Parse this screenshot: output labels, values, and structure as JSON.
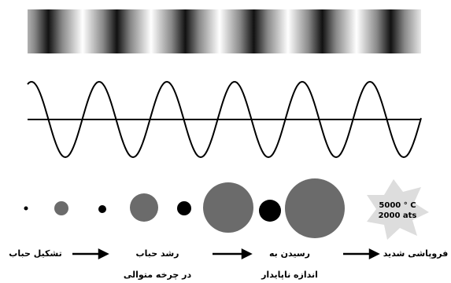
{
  "collapse_label": {
    "temperature": "5000 ° C",
    "pressure": "2000 ats"
  },
  "stages": [
    {
      "lines": [
        "تشکیل حباب"
      ]
    },
    {
      "lines": [
        "رشد حباب",
        "در چرخه متوالی"
      ]
    },
    {
      "lines": [
        "رسیدن به",
        "اندازه ناپایدار"
      ]
    },
    {
      "lines": [
        "فروپاشی شدید"
      ]
    }
  ]
}
